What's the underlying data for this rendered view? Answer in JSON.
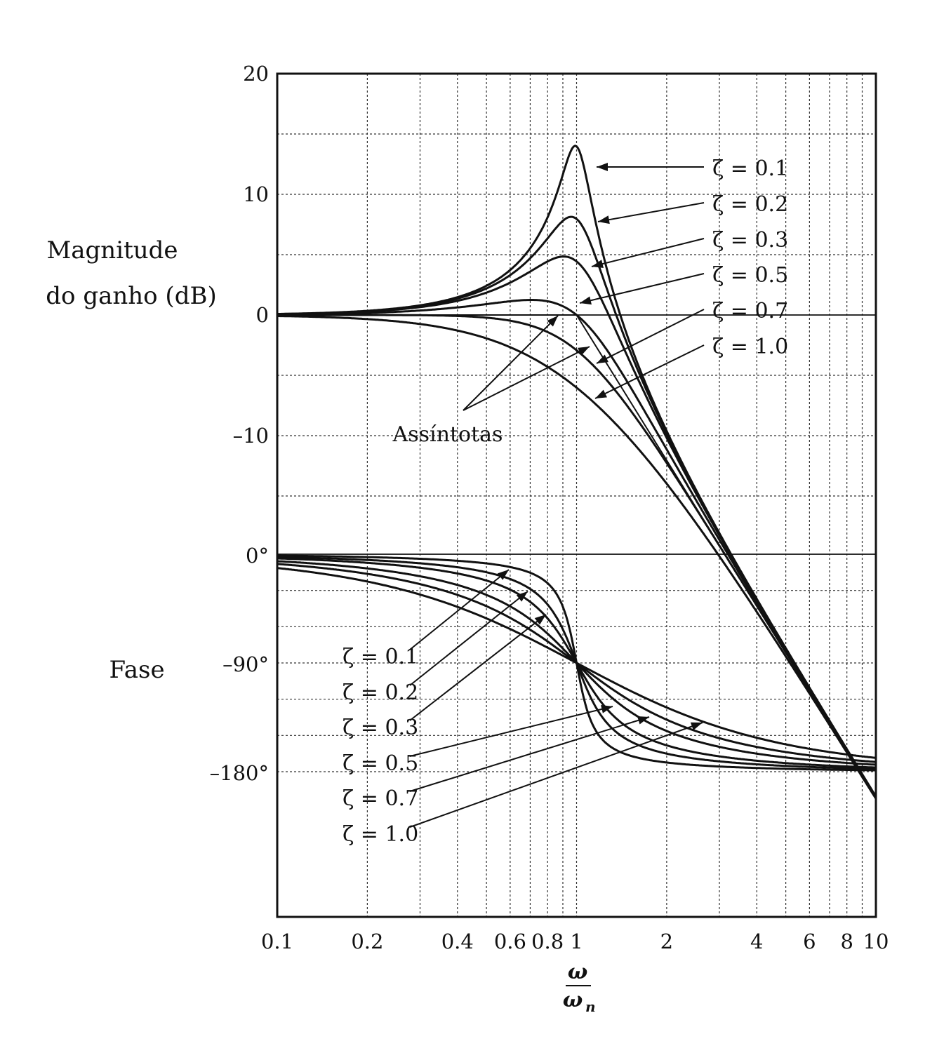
{
  "chart_data": {
    "type": "line",
    "xscale": "log",
    "xlim": [
      0.1,
      10
    ],
    "x_ticks": [
      "0.1",
      "0.2",
      "0.4",
      "0.6",
      "0.8",
      "1",
      "2",
      "4",
      "6",
      "8",
      "10"
    ],
    "x_tick_values": [
      0.1,
      0.2,
      0.4,
      0.6,
      0.8,
      1,
      2,
      4,
      6,
      8,
      10
    ],
    "xlabel_num": "ω",
    "xlabel_den": "ω",
    "xlabel_den_sub": "n",
    "grid": true,
    "magnitude": {
      "ylabel_line1": "Magnitude",
      "ylabel_line2": "do ganho (dB)",
      "y_ticks": [
        "20",
        "10",
        "0",
        "–10"
      ],
      "y_tick_values": [
        20,
        10,
        0,
        -10
      ],
      "zeta": [
        0.1,
        0.2,
        0.3,
        0.5,
        0.7,
        1.0
      ],
      "zeta_labels": [
        "ζ = 0.1",
        "ζ = 0.2",
        "ζ = 0.3",
        "ζ = 0.5",
        "ζ = 0.7",
        "ζ = 1.0"
      ],
      "peaks_db": [
        14.0,
        8.1,
        4.6,
        1.2,
        0.0,
        0.0
      ],
      "asymptote_label": "Assíntotas",
      "asymptote_slope_db_per_decade": -40
    },
    "phase": {
      "ylabel": "Fase",
      "y_ticks": [
        "0°",
        "–90°",
        "–180°"
      ],
      "y_tick_values": [
        0,
        -90,
        -180
      ],
      "zeta": [
        0.1,
        0.2,
        0.3,
        0.5,
        0.7,
        1.0
      ],
      "zeta_labels": [
        "ζ = 0.1",
        "ζ = 0.2",
        "ζ = 0.3",
        "ζ = 0.5",
        "ζ = 0.7",
        "ζ = 1.0"
      ],
      "value_at_corner_deg": -90
    }
  }
}
